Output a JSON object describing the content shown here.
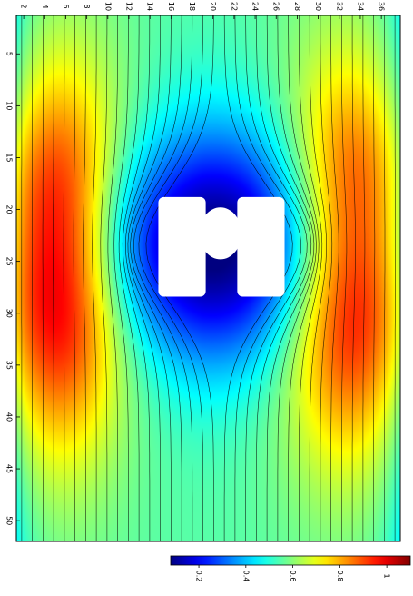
{
  "chart_data": {
    "type": "heatmap",
    "title": "",
    "xlabel": "",
    "ylabel": "",
    "x_ticks": [
      2,
      4,
      6,
      8,
      10,
      12,
      14,
      16,
      18,
      20,
      22,
      24,
      26,
      28,
      30,
      32,
      34,
      36
    ],
    "x_tick_labels": [
      "2",
      "4",
      "6",
      "8",
      "10",
      "12",
      "14",
      "16",
      "18",
      "20",
      "22",
      "24",
      "26",
      "28",
      "30",
      "32",
      "34",
      "36"
    ],
    "y_ticks": [
      5,
      10,
      15,
      20,
      25,
      30,
      35,
      40,
      45,
      50
    ],
    "y_tick_labels": [
      "5",
      "10",
      "15",
      "20",
      "25",
      "30",
      "35",
      "40",
      "45",
      "50"
    ],
    "xlim": [
      1.3,
      37.8
    ],
    "ylim": [
      1.3,
      52.0
    ],
    "colormap": "jet",
    "colorbar": {
      "range": [
        0.08,
        1.1
      ],
      "ticks": [
        0.2,
        0.4,
        0.6,
        0.8,
        1.0
      ],
      "tick_labels": [
        "0.2",
        "0.4",
        "0.6",
        "0.8",
        "1"
      ],
      "placement": "bottom-right"
    },
    "field_description": "magnitude minimal near center obstacles, maxima ~1.1 near x≈5 and x≈33 at y≈25",
    "maxima": [
      {
        "x": 5.0,
        "y": 25.0,
        "value": 1.1
      },
      {
        "x": 33.0,
        "y": 25.0,
        "value": 1.1
      }
    ],
    "obstacles": [
      {
        "shape": "rounded-rect",
        "x1": 14.8,
        "y1": 18.8,
        "x2": 19.3,
        "y2": 28.4
      },
      {
        "shape": "rounded-rect",
        "x1": 22.3,
        "y1": 18.8,
        "x2": 26.8,
        "y2": 28.4
      },
      {
        "shape": "ellipse",
        "cx": 20.7,
        "cy": 22.3,
        "rx": 2.0,
        "ry": 2.5
      }
    ],
    "contour_lines": 36
  }
}
